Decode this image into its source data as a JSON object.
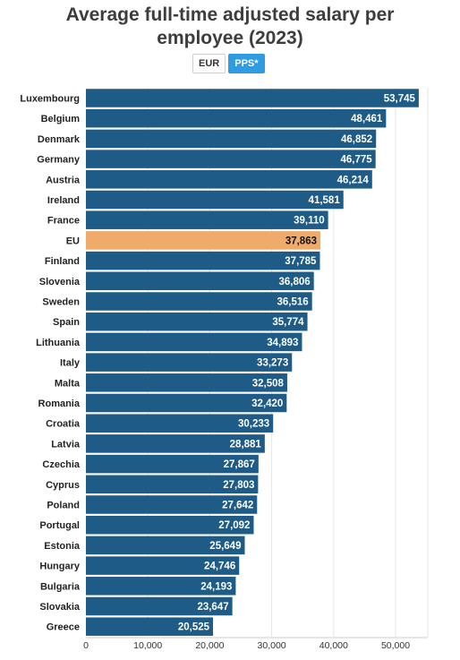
{
  "title_line1": "Average full-time adjusted salary per",
  "title_line2": "employee (2023)",
  "toggles": {
    "eur_label": "EUR",
    "pps_label": "PPS*",
    "active": "pps"
  },
  "colors": {
    "bar": "#1e5b87",
    "highlight": "#f0ab6b",
    "grid": "#e6e6e6"
  },
  "chart_data": {
    "type": "bar",
    "orientation": "horizontal",
    "categories": [
      "Luxembourg",
      "Belgium",
      "Denmark",
      "Germany",
      "Austria",
      "Ireland",
      "France",
      "EU",
      "Finland",
      "Slovenia",
      "Sweden",
      "Spain",
      "Lithuania",
      "Italy",
      "Malta",
      "Romania",
      "Croatia",
      "Latvia",
      "Czechia",
      "Cyprus",
      "Poland",
      "Portugal",
      "Estonia",
      "Hungary",
      "Bulgaria",
      "Slovakia",
      "Greece"
    ],
    "values": [
      53745,
      48461,
      46852,
      46775,
      46214,
      41581,
      39110,
      37863,
      37785,
      36806,
      36516,
      35774,
      34893,
      33273,
      32508,
      32420,
      30233,
      28881,
      27867,
      27803,
      27642,
      27092,
      25649,
      24746,
      24193,
      23647,
      20525
    ],
    "value_labels": [
      "53,745",
      "48,461",
      "46,852",
      "46,775",
      "46,214",
      "41,581",
      "39,110",
      "37,863",
      "37,785",
      "36,806",
      "36,516",
      "35,774",
      "34,893",
      "33,273",
      "32,508",
      "32,420",
      "30,233",
      "28,881",
      "27,867",
      "27,803",
      "27,642",
      "27,092",
      "25,649",
      "24,746",
      "24,193",
      "23,647",
      "20,525"
    ],
    "highlight": "EU",
    "xlim": [
      0,
      55000
    ],
    "xticks": [
      0,
      10000,
      20000,
      30000,
      40000,
      50000
    ],
    "xtick_labels": [
      "0",
      "10,000",
      "20,000",
      "30,000",
      "40,000",
      "50,000"
    ],
    "grid": true
  }
}
